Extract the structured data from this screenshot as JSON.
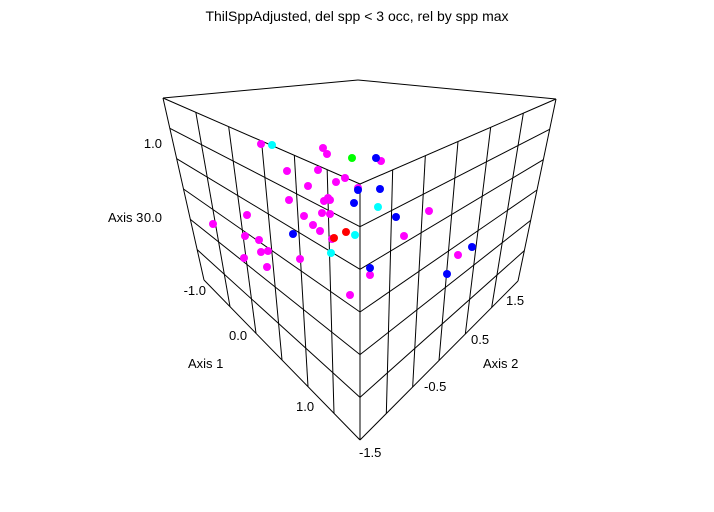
{
  "chart_data": {
    "type": "scatter",
    "title": "ThilSppAdjusted, del spp < 3 occ, rel by spp max",
    "axes": {
      "axis1": {
        "label": "Axis 1",
        "ticks": [
          "-1.0",
          "0.0",
          "1.0"
        ]
      },
      "axis2": {
        "label": "Axis 2",
        "ticks": [
          "-1.5",
          "-0.5",
          "0.5",
          "1.5"
        ]
      },
      "axis3": {
        "label": "Axis 3",
        "ticks": [
          "-1.0",
          "0.0",
          "1.0"
        ]
      }
    },
    "colors": {
      "magenta": "#ff00ff",
      "cyan": "#00ffff",
      "blue": "#0000ff",
      "red": "#ff0000",
      "green": "#00ff00"
    },
    "series": [
      {
        "color_key": "magenta",
        "points": [
          [
            261,
            144
          ],
          [
            323,
            148
          ],
          [
            381,
            161
          ],
          [
            287,
            171
          ],
          [
            327,
            154
          ],
          [
            318,
            170
          ],
          [
            336,
            182
          ],
          [
            345,
            178
          ],
          [
            358,
            188
          ],
          [
            308,
            186
          ],
          [
            328,
            198
          ],
          [
            324,
            201
          ],
          [
            330,
            200
          ],
          [
            289,
            200
          ],
          [
            247,
            215
          ],
          [
            213,
            224
          ],
          [
            304,
            216
          ],
          [
            322,
            213
          ],
          [
            330,
            214
          ],
          [
            313,
            225
          ],
          [
            320,
            231
          ],
          [
            332,
            239
          ],
          [
            245,
            236
          ],
          [
            259,
            240
          ],
          [
            261,
            252
          ],
          [
            244,
            258
          ],
          [
            267,
            267
          ],
          [
            300,
            259
          ],
          [
            268,
            251
          ],
          [
            429,
            211
          ],
          [
            404,
            236
          ],
          [
            458,
            255
          ],
          [
            370,
            275
          ],
          [
            350,
            295
          ]
        ]
      },
      {
        "color_key": "cyan",
        "points": [
          [
            272,
            145
          ],
          [
            378,
            207
          ],
          [
            355,
            235
          ],
          [
            331,
            253
          ]
        ]
      },
      {
        "color_key": "blue",
        "points": [
          [
            376,
            158
          ],
          [
            358,
            190
          ],
          [
            380,
            189
          ],
          [
            354,
            203
          ],
          [
            396,
            217
          ],
          [
            293,
            234
          ],
          [
            472,
            247
          ],
          [
            370,
            268
          ],
          [
            447,
            274
          ]
        ]
      },
      {
        "color_key": "red",
        "points": [
          [
            346,
            232
          ],
          [
            334,
            238
          ]
        ]
      },
      {
        "color_key": "green",
        "points": [
          [
            352,
            158
          ]
        ]
      }
    ]
  }
}
